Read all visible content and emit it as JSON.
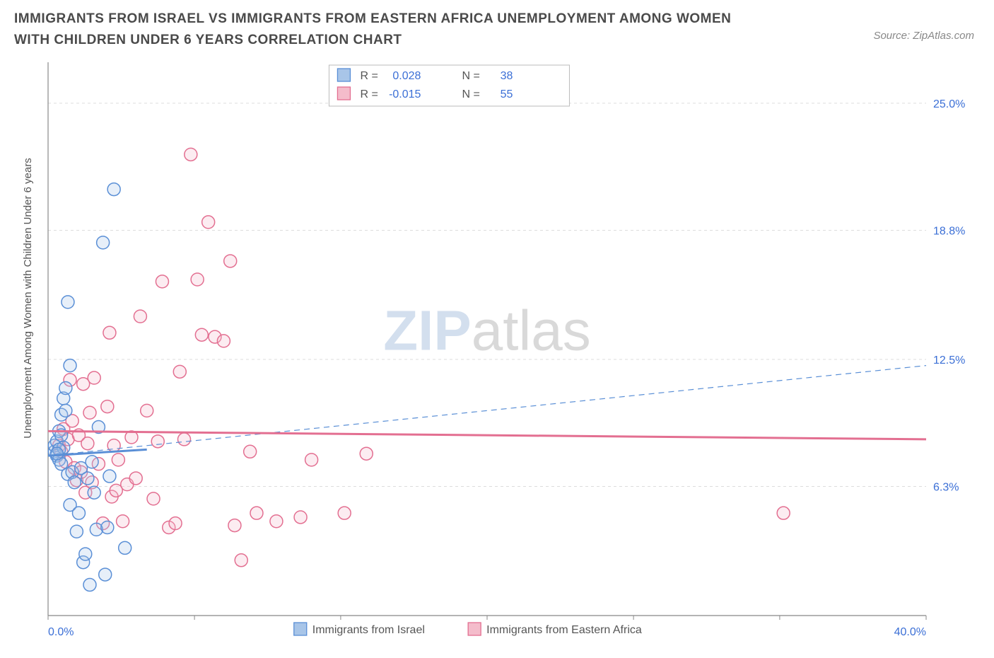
{
  "title": "IMMIGRANTS FROM ISRAEL VS IMMIGRANTS FROM EASTERN AFRICA UNEMPLOYMENT AMONG WOMEN WITH CHILDREN UNDER 6 YEARS CORRELATION CHART",
  "source": "Source: ZipAtlas.com",
  "y_axis_label": "Unemployment Among Women with Children Under 6 years",
  "chart": {
    "type": "scatter",
    "xlim": [
      0,
      40
    ],
    "ylim": [
      0,
      27
    ],
    "x_ticks": [
      0,
      6.67,
      13.33,
      20,
      26.67,
      33.33,
      40
    ],
    "x_tick_labels_visible": {
      "0": "0.0%",
      "40": "40.0%"
    },
    "y_ticks": [
      6.3,
      12.5,
      18.8,
      25.0
    ],
    "y_tick_labels": [
      "6.3%",
      "12.5%",
      "18.8%",
      "25.0%"
    ],
    "grid_color": "#dddddd",
    "grid_dash": "4,4",
    "axis_color": "#888888",
    "background_color": "#ffffff",
    "tick_label_color": "#3b6fd6",
    "tick_label_fontsize": 16,
    "y_axis_label_color": "#555555",
    "y_axis_label_fontsize": 15,
    "marker_radius": 9,
    "marker_stroke_width": 1.5,
    "marker_fill_opacity": 0.28
  },
  "series": [
    {
      "name": "Immigrants from Israel",
      "color": "#5a8fd6",
      "fill": "#a8c5e8",
      "R": "0.028",
      "N": "38",
      "trend_solid": {
        "x1": 0,
        "y1": 7.8,
        "x2": 4.5,
        "y2": 8.1
      },
      "trend_dashed": {
        "x1": 0,
        "y1": 7.8,
        "x2": 40,
        "y2": 12.2
      },
      "points": [
        [
          0.3,
          8.0
        ],
        [
          0.3,
          8.3
        ],
        [
          0.4,
          7.8
        ],
        [
          0.4,
          8.5
        ],
        [
          0.5,
          7.6
        ],
        [
          0.5,
          9.0
        ],
        [
          0.6,
          7.4
        ],
        [
          0.6,
          9.8
        ],
        [
          0.7,
          10.6
        ],
        [
          0.8,
          11.1
        ],
        [
          0.8,
          10.0
        ],
        [
          0.9,
          6.9
        ],
        [
          1.0,
          5.4
        ],
        [
          1.0,
          12.2
        ],
        [
          1.1,
          7.0
        ],
        [
          1.2,
          6.5
        ],
        [
          1.3,
          4.1
        ],
        [
          1.4,
          5.0
        ],
        [
          1.5,
          7.2
        ],
        [
          1.6,
          2.6
        ],
        [
          1.7,
          3.0
        ],
        [
          1.8,
          6.7
        ],
        [
          1.9,
          1.5
        ],
        [
          2.0,
          7.5
        ],
        [
          2.2,
          4.2
        ],
        [
          2.3,
          9.2
        ],
        [
          2.5,
          18.2
        ],
        [
          2.6,
          2.0
        ],
        [
          2.7,
          4.3
        ],
        [
          2.8,
          6.8
        ],
        [
          3.0,
          20.8
        ],
        [
          0.9,
          15.3
        ],
        [
          3.5,
          3.3
        ],
        [
          0.6,
          8.8
        ],
        [
          0.7,
          8.2
        ],
        [
          0.5,
          8.1
        ],
        [
          0.4,
          7.9
        ],
        [
          2.1,
          6.0
        ]
      ]
    },
    {
      "name": "Immigrants from Eastern Africa",
      "color": "#e36f91",
      "fill": "#f4bccb",
      "R": "-0.015",
      "N": "55",
      "trend_solid": {
        "x1": 0,
        "y1": 9.0,
        "x2": 40,
        "y2": 8.6
      },
      "trend_dashed": null,
      "points": [
        [
          0.5,
          8.3
        ],
        [
          0.6,
          8.0
        ],
        [
          0.7,
          9.1
        ],
        [
          0.8,
          7.5
        ],
        [
          0.9,
          8.6
        ],
        [
          1.0,
          11.5
        ],
        [
          1.1,
          9.5
        ],
        [
          1.2,
          7.2
        ],
        [
          1.3,
          6.6
        ],
        [
          1.4,
          8.8
        ],
        [
          1.5,
          7.0
        ],
        [
          1.6,
          11.3
        ],
        [
          1.7,
          6.0
        ],
        [
          1.8,
          8.4
        ],
        [
          2.0,
          6.5
        ],
        [
          2.1,
          11.6
        ],
        [
          2.3,
          7.4
        ],
        [
          2.5,
          4.5
        ],
        [
          2.7,
          10.2
        ],
        [
          2.9,
          5.8
        ],
        [
          3.0,
          8.3
        ],
        [
          3.2,
          7.6
        ],
        [
          3.4,
          4.6
        ],
        [
          3.6,
          6.4
        ],
        [
          3.8,
          8.7
        ],
        [
          4.0,
          6.7
        ],
        [
          4.2,
          14.6
        ],
        [
          4.5,
          10.0
        ],
        [
          4.8,
          5.7
        ],
        [
          5.0,
          8.5
        ],
        [
          5.2,
          16.3
        ],
        [
          5.5,
          4.3
        ],
        [
          5.8,
          4.5
        ],
        [
          6.0,
          11.9
        ],
        [
          6.2,
          8.6
        ],
        [
          6.5,
          22.5
        ],
        [
          6.8,
          16.4
        ],
        [
          7.0,
          13.7
        ],
        [
          7.3,
          19.2
        ],
        [
          7.6,
          13.6
        ],
        [
          8.0,
          13.4
        ],
        [
          8.3,
          17.3
        ],
        [
          8.5,
          4.4
        ],
        [
          8.8,
          2.7
        ],
        [
          9.2,
          8.0
        ],
        [
          9.5,
          5.0
        ],
        [
          10.4,
          4.6
        ],
        [
          11.5,
          4.8
        ],
        [
          12.0,
          7.6
        ],
        [
          13.5,
          5.0
        ],
        [
          14.5,
          7.9
        ],
        [
          33.5,
          5.0
        ],
        [
          2.8,
          13.8
        ],
        [
          1.9,
          9.9
        ],
        [
          3.1,
          6.1
        ]
      ]
    }
  ],
  "stats_box": {
    "border_color": "#bbbbbb",
    "bg": "#ffffff",
    "label_color": "#555555",
    "value_color": "#3b6fd6",
    "fontsize": 16,
    "rows": [
      {
        "swatch_fill": "#a8c5e8",
        "swatch_stroke": "#5a8fd6",
        "R_label": "R =",
        "R_val": "0.028",
        "N_label": "N =",
        "N_val": "38"
      },
      {
        "swatch_fill": "#f4bccb",
        "swatch_stroke": "#e36f91",
        "R_label": "R =",
        "R_val": "-0.015",
        "N_label": "N =",
        "N_val": "55"
      }
    ]
  },
  "legend": {
    "fontsize": 16,
    "label_color": "#555555",
    "items": [
      {
        "swatch_fill": "#a8c5e8",
        "swatch_stroke": "#5a8fd6",
        "label": "Immigrants from Israel"
      },
      {
        "swatch_fill": "#f4bccb",
        "swatch_stroke": "#e36f91",
        "label": "Immigrants from Eastern Africa"
      }
    ]
  },
  "watermark": {
    "zip": "ZIP",
    "atlas": "atlas"
  }
}
